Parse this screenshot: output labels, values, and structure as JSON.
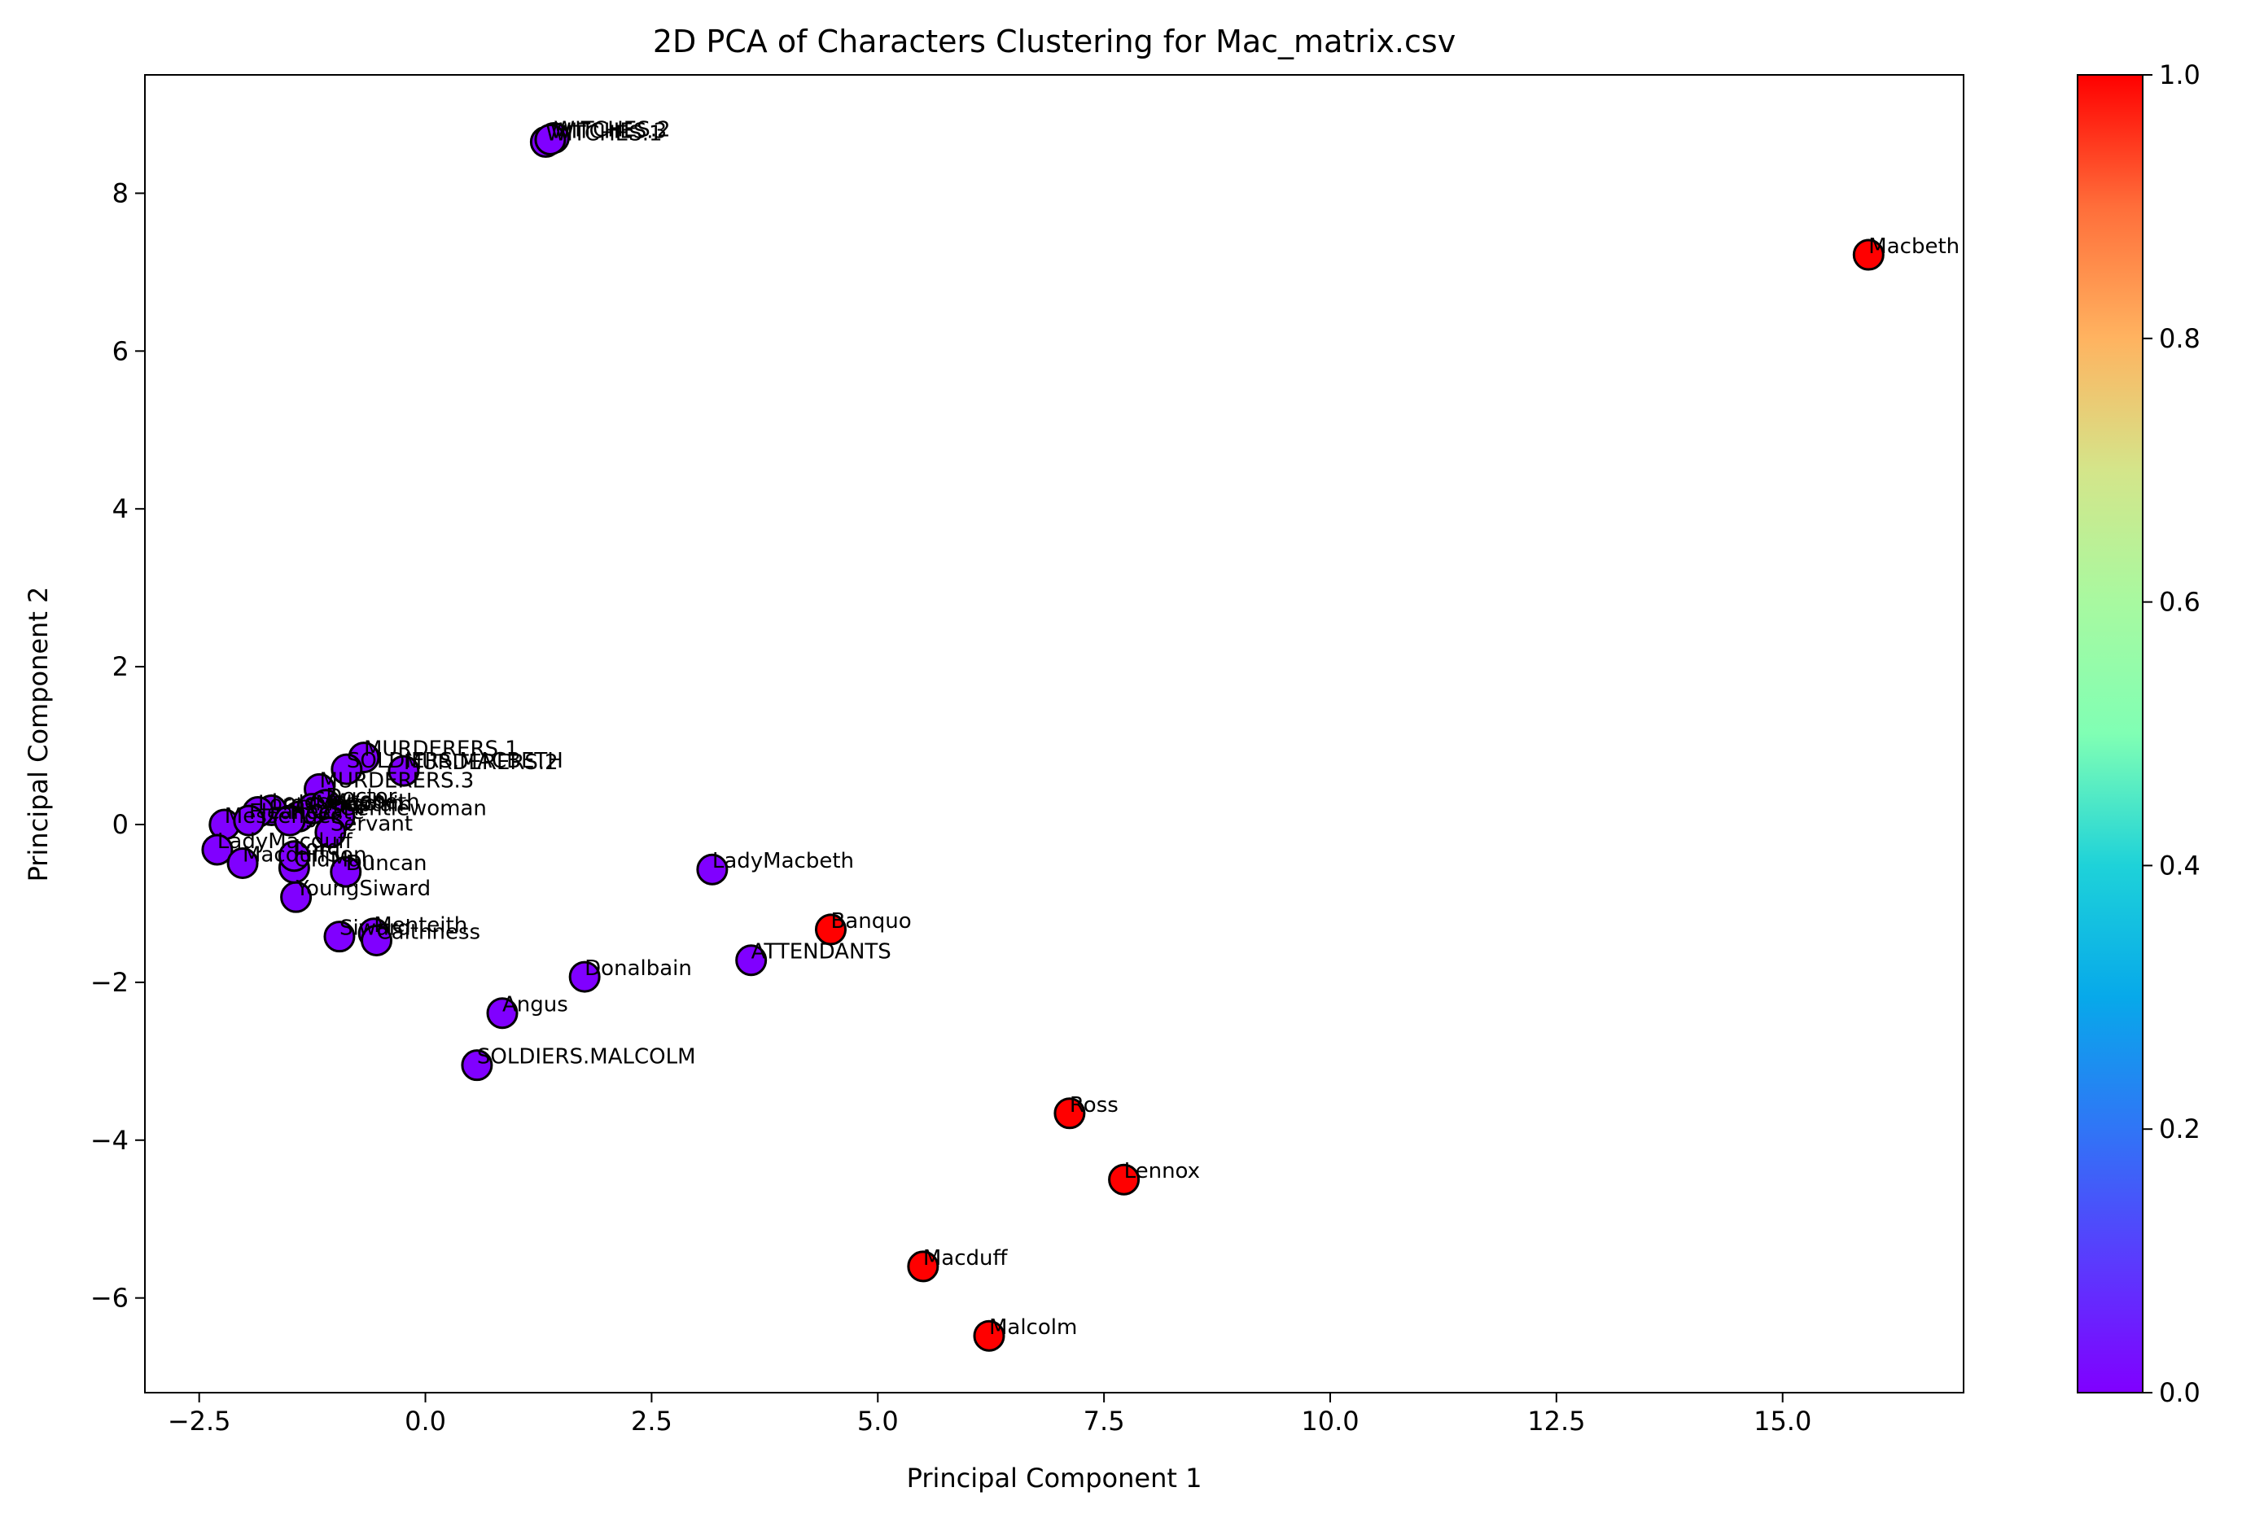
{
  "chart_data": {
    "type": "scatter",
    "title": "2D PCA of Characters Clustering for Mac_matrix.csv",
    "xlabel": "Principal Component 1",
    "ylabel": "Principal Component 2",
    "xlim": [
      -3.1,
      17.0
    ],
    "ylim": [
      -7.2,
      9.5
    ],
    "xticks": [
      -2.5,
      0.0,
      2.5,
      5.0,
      7.5,
      10.0,
      12.5,
      15.0
    ],
    "xtick_labels": [
      "−2.5",
      "0.0",
      "2.5",
      "5.0",
      "7.5",
      "10.0",
      "12.5",
      "15.0"
    ],
    "yticks": [
      -6,
      -4,
      -2,
      0,
      2,
      4,
      6,
      8
    ],
    "ytick_labels": [
      "−6",
      "−4",
      "−2",
      "0",
      "2",
      "4",
      "6",
      "8"
    ],
    "colorbar": {
      "range": [
        0.0,
        1.0
      ],
      "ticks": [
        0.0,
        0.2,
        0.4,
        0.6,
        0.8,
        1.0
      ],
      "tick_labels": [
        "0.0",
        "0.2",
        "0.4",
        "0.6",
        "0.8",
        "1.0"
      ],
      "colormap": "rainbow"
    },
    "grid": false,
    "points": [
      {
        "label": "Macbeth",
        "x": 15.95,
        "y": 7.22,
        "c": 1
      },
      {
        "label": "WITCHES.1",
        "x": 1.33,
        "y": 8.65,
        "c": 0
      },
      {
        "label": "WITCHES.2",
        "x": 1.42,
        "y": 8.7,
        "c": 0
      },
      {
        "label": "WITCHES.3",
        "x": 1.38,
        "y": 8.68,
        "c": 0
      },
      {
        "label": "LadyMacbeth",
        "x": 3.17,
        "y": -0.57,
        "c": 0
      },
      {
        "label": "Banquo",
        "x": 4.48,
        "y": -1.33,
        "c": 1
      },
      {
        "label": "ATTENDANTS",
        "x": 3.6,
        "y": -1.72,
        "c": 0
      },
      {
        "label": "Donalbain",
        "x": 1.76,
        "y": -1.93,
        "c": 0
      },
      {
        "label": "Angus",
        "x": 0.85,
        "y": -2.39,
        "c": 0
      },
      {
        "label": "SOLDIERS.MALCOLM",
        "x": 0.57,
        "y": -3.05,
        "c": 0
      },
      {
        "label": "Ross",
        "x": 7.12,
        "y": -3.66,
        "c": 1
      },
      {
        "label": "Lennox",
        "x": 7.72,
        "y": -4.5,
        "c": 1
      },
      {
        "label": "Macduff",
        "x": 5.5,
        "y": -5.6,
        "c": 1
      },
      {
        "label": "Malcolm",
        "x": 6.23,
        "y": -6.48,
        "c": 1
      },
      {
        "label": "MURDERERS.1",
        "x": -0.68,
        "y": 0.85,
        "c": 0
      },
      {
        "label": "MURDERERS.2",
        "x": -0.24,
        "y": 0.68,
        "c": 0
      },
      {
        "label": "SOLDIERS.MACBETH",
        "x": -0.87,
        "y": 0.7,
        "c": 0
      },
      {
        "label": "MURDERERS.3",
        "x": -1.17,
        "y": 0.45,
        "c": 0
      },
      {
        "label": "Captain",
        "x": -1.05,
        "y": 0.15,
        "c": 0
      },
      {
        "label": "LordsMacbeth",
        "x": -1.7,
        "y": 0.18,
        "c": 0
      },
      {
        "label": "LordsMalcolm",
        "x": -1.85,
        "y": 0.16,
        "c": 0
      },
      {
        "label": "Messenger",
        "x": -2.22,
        "y": 0.0,
        "c": 0
      },
      {
        "label": "LadyMacduff",
        "x": -2.3,
        "y": -0.32,
        "c": 0
      },
      {
        "label": "MacduffSon",
        "x": -2.02,
        "y": -0.49,
        "c": 0
      },
      {
        "label": "Fleance",
        "x": -1.95,
        "y": 0.05,
        "c": 0
      },
      {
        "label": "Porter",
        "x": -1.4,
        "y": 0.1,
        "c": 0
      },
      {
        "label": "Seyton",
        "x": -1.25,
        "y": 0.2,
        "c": 0
      },
      {
        "label": "Doctor",
        "x": -1.1,
        "y": 0.25,
        "c": 0
      },
      {
        "label": "Gentlewoman",
        "x": -0.95,
        "y": 0.1,
        "c": 0
      },
      {
        "label": "Hecate",
        "x": -1.5,
        "y": 0.05,
        "c": 0
      },
      {
        "label": "Duncan",
        "x": -0.88,
        "y": -0.6,
        "c": 0
      },
      {
        "label": "Siward",
        "x": -0.95,
        "y": -1.42,
        "c": 0
      },
      {
        "label": "YoungSiward",
        "x": -1.43,
        "y": -0.92,
        "c": 0
      },
      {
        "label": "Menteith",
        "x": -0.57,
        "y": -1.38,
        "c": 0
      },
      {
        "label": "Caithness",
        "x": -0.54,
        "y": -1.47,
        "c": 0
      },
      {
        "label": "OldMan",
        "x": -1.45,
        "y": -0.55,
        "c": 0
      },
      {
        "label": "Lord",
        "x": -1.45,
        "y": -0.4,
        "c": 0
      },
      {
        "label": "Servant",
        "x": -1.05,
        "y": -0.1,
        "c": 0
      }
    ]
  }
}
